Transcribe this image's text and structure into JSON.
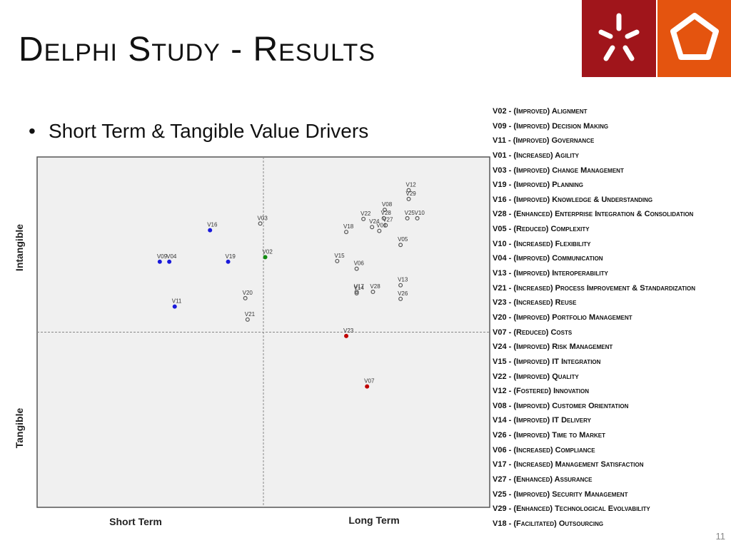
{
  "slide": {
    "title": "Delphi Study - Results",
    "bullet": "Short Term & Tangible Value Drivers",
    "page_number": "11"
  },
  "colors": {
    "logo_red": "#a0151b",
    "logo_orange": "#e4540f",
    "point_blue": "#1a1adb",
    "point_green": "#108a10",
    "point_red": "#c00000",
    "point_hollow": "#555555"
  },
  "legend": [
    "V02 - (Improved) Alignment",
    "V09 - (Improved) Decision Making",
    "V11 - (Improved) Governance",
    "V01 - (Increased) Agility",
    "V03 - (Improved) Change Management",
    "V19 - (Improved) Planning",
    "V16 - (Improved) Knowledge & Understanding",
    "V28 - (Enhanced) Enterprise Integration & Consolidation",
    "V05 - (Reduced) Complexity",
    "V10 - (Increased) Flexibility",
    "V04 - (Improved) Communication",
    "V13 - (Improved) Interoperability",
    "V21 - (Increased) Process Improvement & Standardization",
    "V23 - (Increased) Reuse",
    "V20 - (Improved) Portfolio Management",
    "V07 - (Reduced) Costs",
    "V24 - (Improved) Risk Management",
    "V15 - (Improved) IT Integration",
    "V22 - (Improved) Quality",
    "V12 - (Fostered) Innovation",
    "V08 - (Improved) Customer Orientation",
    "V14 - (Improved) IT Delivery",
    "V26 - (Improved) Time to Market",
    "V06 - (Increased) Compliance",
    "V17 - (Increased) Management Satisfaction",
    "V27 - (Enhanced) Assurance",
    "V25 - (Improved) Security Management",
    "V29 - (Enhanced) Technological Evolvability",
    "V18 - (Facilitated) Outsourcing"
  ],
  "chart_data": {
    "type": "scatter",
    "xlabel_left": "Short Term",
    "xlabel_right": "Long Term",
    "ylabel_top": "Intangible",
    "ylabel_bottom": "Tangible",
    "xlim": [
      0,
      100
    ],
    "ylim": [
      0,
      100
    ],
    "grid": "quadrant dividers (dashed) at x=50, y=50",
    "points": [
      {
        "label": "V12",
        "x": 82.1,
        "y": 90.5,
        "marker": "hollow"
      },
      {
        "label": "V29",
        "x": 82.1,
        "y": 88.0,
        "marker": "hollow"
      },
      {
        "label": "V08",
        "x": 76.8,
        "y": 84.9,
        "marker": "hollow"
      },
      {
        "label": "V22",
        "x": 72.1,
        "y": 82.3,
        "marker": "hollow"
      },
      {
        "label": "V28",
        "x": 76.6,
        "y": 82.5,
        "marker": "hollow"
      },
      {
        "label": "V24",
        "x": 74.0,
        "y": 80.0,
        "marker": "hollow"
      },
      {
        "label": "V27",
        "x": 77.0,
        "y": 80.5,
        "marker": "hollow"
      },
      {
        "label": "V25",
        "x": 81.8,
        "y": 82.5,
        "marker": "hollow"
      },
      {
        "label": "V10",
        "x": 84.0,
        "y": 82.5,
        "marker": "hollow"
      },
      {
        "label": "V18",
        "x": 68.3,
        "y": 78.6,
        "marker": "hollow"
      },
      {
        "label": "V01",
        "x": 75.6,
        "y": 78.9,
        "marker": "hollow"
      },
      {
        "label": "V05",
        "x": 80.3,
        "y": 74.9,
        "marker": "hollow"
      },
      {
        "label": "V16",
        "x": 38.2,
        "y": 79.1,
        "marker": "filled",
        "color": "blue"
      },
      {
        "label": "V03",
        "x": 49.3,
        "y": 81.0,
        "marker": "hollow"
      },
      {
        "label": "V02",
        "x": 50.4,
        "y": 71.4,
        "marker": "filled",
        "color": "green"
      },
      {
        "label": "V09",
        "x": 27.1,
        "y": 70.1,
        "marker": "filled",
        "color": "blue"
      },
      {
        "label": "V04",
        "x": 29.2,
        "y": 70.1,
        "marker": "filled",
        "color": "blue"
      },
      {
        "label": "V19",
        "x": 42.2,
        "y": 70.1,
        "marker": "filled",
        "color": "blue"
      },
      {
        "label": "V15",
        "x": 66.3,
        "y": 70.3,
        "marker": "hollow"
      },
      {
        "label": "V06",
        "x": 70.6,
        "y": 68.1,
        "marker": "hollow"
      },
      {
        "label": "V13",
        "x": 80.3,
        "y": 63.4,
        "marker": "hollow"
      },
      {
        "label": "V17",
        "x": 70.6,
        "y": 61.5,
        "marker": "hollow"
      },
      {
        "label": "V28",
        "x": 74.2,
        "y": 61.5,
        "marker": "hollow"
      },
      {
        "label": "V14",
        "x": 70.6,
        "y": 61.1,
        "marker": "hollow"
      },
      {
        "label": "V26",
        "x": 80.3,
        "y": 59.5,
        "marker": "hollow"
      },
      {
        "label": "V20",
        "x": 46.0,
        "y": 59.7,
        "marker": "hollow"
      },
      {
        "label": "V11",
        "x": 30.4,
        "y": 57.3,
        "marker": "filled",
        "color": "blue"
      },
      {
        "label": "V21",
        "x": 46.5,
        "y": 53.6,
        "marker": "hollow"
      },
      {
        "label": "V23",
        "x": 68.3,
        "y": 48.9,
        "marker": "filled",
        "color": "red"
      },
      {
        "label": "V07",
        "x": 72.9,
        "y": 34.5,
        "marker": "filled",
        "color": "red"
      }
    ]
  }
}
